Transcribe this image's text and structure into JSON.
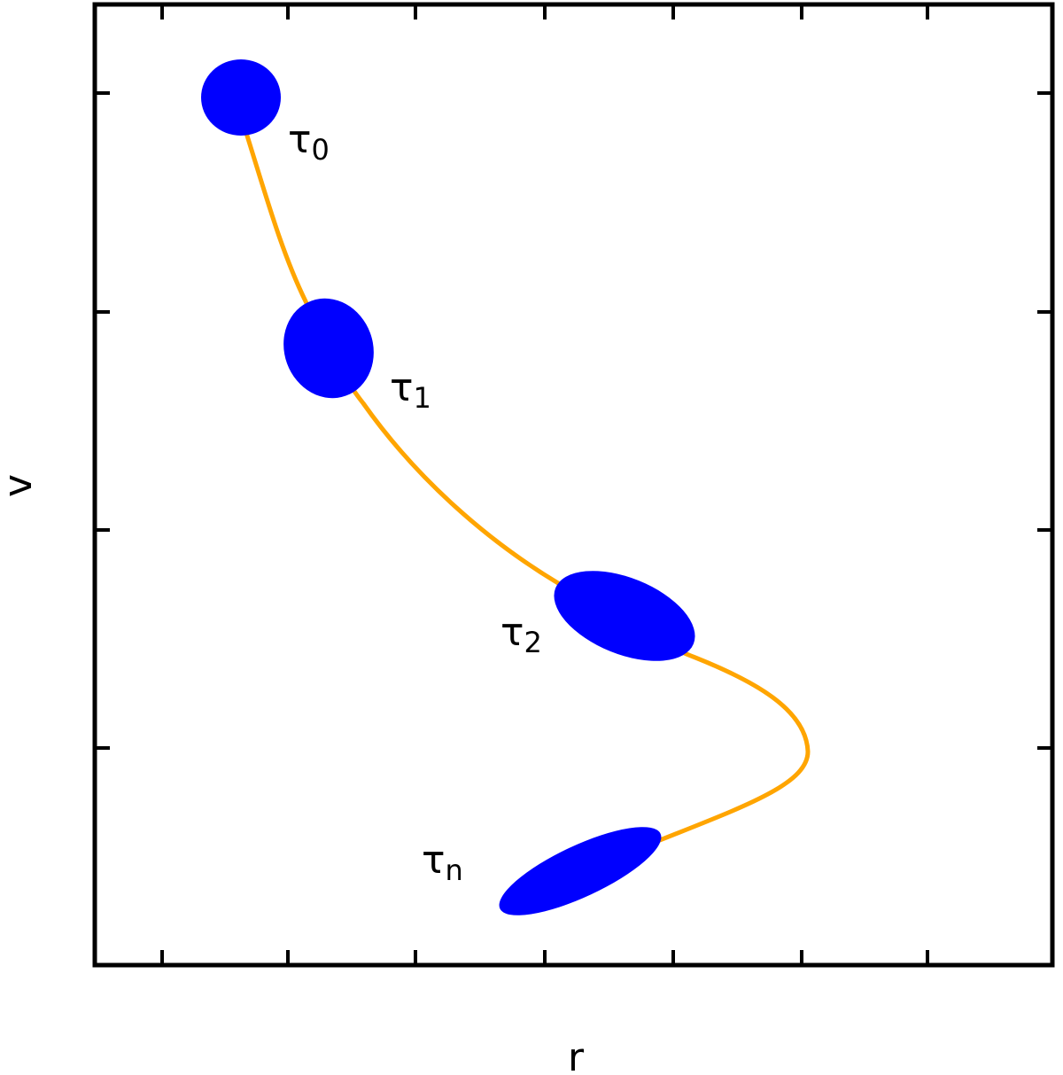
{
  "axes": {
    "x_label": "r",
    "y_label": "v"
  },
  "nodes": [
    {
      "symbol": "τ",
      "subscript": "0"
    },
    {
      "symbol": "τ",
      "subscript": "1"
    },
    {
      "symbol": "τ",
      "subscript": "2"
    },
    {
      "symbol": "τ",
      "subscript": "n"
    }
  ]
}
